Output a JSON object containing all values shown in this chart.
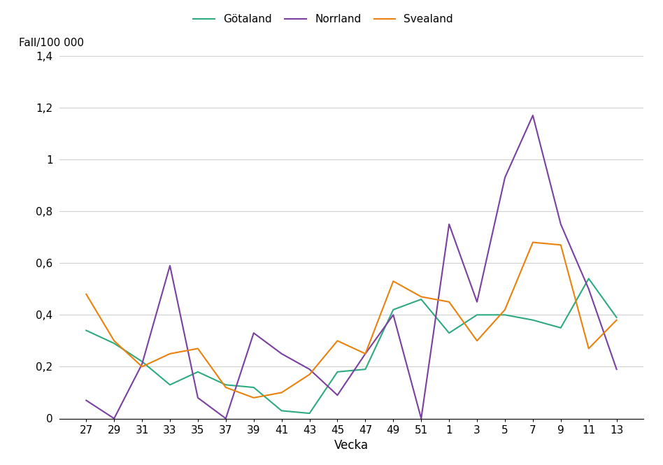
{
  "x_labels": [
    "27",
    "29",
    "31",
    "33",
    "35",
    "37",
    "39",
    "41",
    "43",
    "45",
    "47",
    "49",
    "51",
    "1",
    "3",
    "5",
    "7",
    "9",
    "11",
    "13"
  ],
  "gotaland": [
    0.34,
    0.29,
    0.22,
    0.13,
    0.18,
    0.13,
    0.12,
    0.03,
    0.02,
    0.18,
    0.19,
    0.42,
    0.46,
    0.33,
    0.4,
    0.4,
    0.38,
    0.35,
    0.54,
    0.39
  ],
  "norrland": [
    0.07,
    0.0,
    0.21,
    0.59,
    0.08,
    0.0,
    0.33,
    0.25,
    0.19,
    0.09,
    0.25,
    0.4,
    0.0,
    0.75,
    0.45,
    0.93,
    1.17,
    0.75,
    0.5,
    0.19
  ],
  "svealand": [
    0.48,
    0.3,
    0.2,
    0.25,
    0.27,
    0.12,
    0.08,
    0.1,
    0.17,
    0.3,
    0.25,
    0.53,
    0.47,
    0.45,
    0.3,
    0.42,
    0.68,
    0.67,
    0.27,
    0.38
  ],
  "gotaland_color": "#2eaa80",
  "norrland_color": "#7b3fa0",
  "svealand_color": "#e8820c",
  "ylabel": "Fall/100 000",
  "xlabel": "Vecka",
  "ylim": [
    0,
    1.4
  ],
  "yticks": [
    0,
    0.2,
    0.4,
    0.6,
    0.8,
    1.0,
    1.2,
    1.4
  ],
  "ytick_labels": [
    "0",
    "0,2",
    "0,4",
    "0,6",
    "0,8",
    "1",
    "1,2",
    "1,4"
  ],
  "legend_labels": [
    "Götaland",
    "Norrland",
    "Svealand"
  ],
  "background_color": "#ffffff",
  "grid_color": "#d0d0d0",
  "line_width": 1.5,
  "title_fontsize": 11,
  "axis_fontsize": 11,
  "legend_fontsize": 11
}
